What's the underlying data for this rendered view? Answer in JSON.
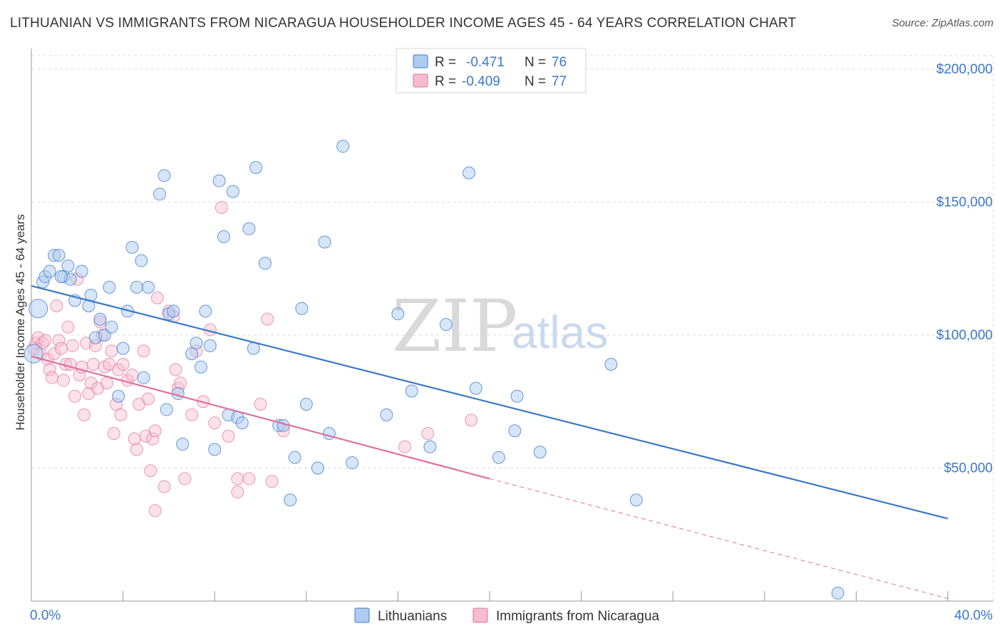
{
  "title": "LITHUANIAN VS IMMIGRANTS FROM NICARAGUA HOUSEHOLDER INCOME AGES 45 - 64 YEARS CORRELATION CHART",
  "source": "Source: ZipAtlas.com",
  "watermark": {
    "zip": "ZIP",
    "atlas": "atlas"
  },
  "colors": {
    "blue": "#3b78c8",
    "blue_fill": "#aecbf0",
    "pink": "#e0709a",
    "pink_fill": "#f6bcd0",
    "grid": "#dcdcdc"
  },
  "legend_top": {
    "rows": [
      {
        "r_label": "R =",
        "r_value": "-0.471",
        "n_label": "N =",
        "n_value": "76"
      },
      {
        "r_label": "R =",
        "r_value": "-0.409",
        "n_label": "N =",
        "n_value": "77"
      }
    ]
  },
  "legend_bottom": {
    "items": [
      "Lithuanians",
      "Immigrants from Nicaragua"
    ]
  },
  "chart_data": {
    "type": "scatter",
    "xlabel": "",
    "ylabel": "Householder Income Ages 45 - 64 years",
    "x_tick_labels": [
      "0.0%",
      "40.0%"
    ],
    "y_tick_labels": [
      "$50,000",
      "$100,000",
      "$150,000",
      "$200,000"
    ],
    "y_ticks": [
      50000,
      100000,
      150000,
      200000
    ],
    "xlim": [
      0,
      40
    ],
    "ylim": [
      0,
      205000
    ],
    "grid": true,
    "series": [
      {
        "name": "Lithuanians",
        "r": -0.471,
        "n": 76,
        "trend": {
          "x0": 0,
          "y0": 118500,
          "x1": 40,
          "y1": 31000
        },
        "points": [
          [
            0.1,
            93000
          ],
          [
            0.3,
            110000
          ],
          [
            0.5,
            120000
          ],
          [
            0.6,
            122000
          ],
          [
            0.8,
            124000
          ],
          [
            1.0,
            130000
          ],
          [
            1.2,
            130000
          ],
          [
            1.4,
            122000
          ],
          [
            1.6,
            126000
          ],
          [
            1.7,
            121000
          ],
          [
            2.2,
            124000
          ],
          [
            1.9,
            113000
          ],
          [
            2.5,
            111000
          ],
          [
            2.6,
            115000
          ],
          [
            2.8,
            99000
          ],
          [
            3.0,
            106000
          ],
          [
            3.2,
            100000
          ],
          [
            3.4,
            118000
          ],
          [
            3.5,
            103000
          ],
          [
            4.0,
            95000
          ],
          [
            4.2,
            109000
          ],
          [
            4.4,
            133000
          ],
          [
            4.6,
            118000
          ],
          [
            4.8,
            128000
          ],
          [
            4.9,
            84000
          ],
          [
            5.1,
            118000
          ],
          [
            5.6,
            153000
          ],
          [
            5.8,
            160000
          ],
          [
            5.9,
            72000
          ],
          [
            6.0,
            108000
          ],
          [
            6.2,
            109000
          ],
          [
            6.4,
            78000
          ],
          [
            6.6,
            59000
          ],
          [
            7.0,
            93000
          ],
          [
            7.2,
            97000
          ],
          [
            7.4,
            88000
          ],
          [
            7.6,
            109000
          ],
          [
            7.8,
            96000
          ],
          [
            8.0,
            57000
          ],
          [
            8.2,
            158000
          ],
          [
            8.4,
            137000
          ],
          [
            8.6,
            70000
          ],
          [
            8.8,
            154000
          ],
          [
            9.0,
            69000
          ],
          [
            9.2,
            67000
          ],
          [
            9.5,
            140000
          ],
          [
            9.7,
            95000
          ],
          [
            9.8,
            163000
          ],
          [
            10.2,
            127000
          ],
          [
            10.8,
            66000
          ],
          [
            11.0,
            66000
          ],
          [
            11.3,
            38000
          ],
          [
            11.5,
            54000
          ],
          [
            11.8,
            110000
          ],
          [
            12.0,
            74000
          ],
          [
            12.5,
            50000
          ],
          [
            12.8,
            135000
          ],
          [
            13.0,
            63000
          ],
          [
            13.6,
            171000
          ],
          [
            14.0,
            52000
          ],
          [
            15.5,
            70000
          ],
          [
            16.0,
            108000
          ],
          [
            16.6,
            79000
          ],
          [
            17.4,
            58000
          ],
          [
            18.1,
            104000
          ],
          [
            19.1,
            161000
          ],
          [
            19.4,
            80000
          ],
          [
            20.4,
            54000
          ],
          [
            21.1,
            64000
          ],
          [
            21.2,
            77000
          ],
          [
            22.2,
            56000
          ],
          [
            25.3,
            89000
          ],
          [
            26.4,
            38000
          ],
          [
            35.2,
            3000
          ],
          [
            3.8,
            77000
          ],
          [
            1.3,
            122000
          ]
        ]
      },
      {
        "name": "Immigrants from Nicaragua",
        "r": -0.409,
        "n": 77,
        "trend": {
          "x0": 0,
          "y0": 92000,
          "x1": 20,
          "y1": 46000,
          "dash_to_x": 40,
          "dash_to_y": 1000
        },
        "points": [
          [
            0.1,
            95000
          ],
          [
            0.2,
            97000
          ],
          [
            0.3,
            99000
          ],
          [
            0.4,
            93000
          ],
          [
            0.5,
            97000
          ],
          [
            0.6,
            98000
          ],
          [
            0.7,
            91000
          ],
          [
            0.8,
            87000
          ],
          [
            0.9,
            84000
          ],
          [
            1.0,
            93000
          ],
          [
            1.1,
            111000
          ],
          [
            1.2,
            98000
          ],
          [
            1.3,
            95000
          ],
          [
            1.4,
            83000
          ],
          [
            1.5,
            89000
          ],
          [
            1.6,
            103000
          ],
          [
            1.7,
            89000
          ],
          [
            1.8,
            96000
          ],
          [
            1.9,
            77000
          ],
          [
            2.0,
            121000
          ],
          [
            2.1,
            85000
          ],
          [
            2.2,
            88000
          ],
          [
            2.3,
            70000
          ],
          [
            2.4,
            97000
          ],
          [
            2.5,
            78000
          ],
          [
            2.6,
            82000
          ],
          [
            2.7,
            89000
          ],
          [
            2.8,
            96000
          ],
          [
            2.9,
            80000
          ],
          [
            3.0,
            105000
          ],
          [
            3.1,
            100000
          ],
          [
            3.2,
            88000
          ],
          [
            3.3,
            82000
          ],
          [
            3.4,
            89000
          ],
          [
            3.5,
            94000
          ],
          [
            3.6,
            63000
          ],
          [
            3.7,
            74000
          ],
          [
            3.8,
            87000
          ],
          [
            3.9,
            70000
          ],
          [
            4.0,
            89000
          ],
          [
            4.2,
            83000
          ],
          [
            4.4,
            85000
          ],
          [
            4.5,
            61000
          ],
          [
            4.6,
            57000
          ],
          [
            4.7,
            74000
          ],
          [
            4.9,
            94000
          ],
          [
            5.0,
            62000
          ],
          [
            5.1,
            76000
          ],
          [
            5.3,
            61000
          ],
          [
            5.4,
            64000
          ],
          [
            5.5,
            114000
          ],
          [
            5.8,
            43000
          ],
          [
            6.0,
            109000
          ],
          [
            6.2,
            107000
          ],
          [
            6.3,
            87000
          ],
          [
            6.4,
            80000
          ],
          [
            6.5,
            82000
          ],
          [
            6.7,
            46000
          ],
          [
            7.0,
            70000
          ],
          [
            7.2,
            94000
          ],
          [
            7.5,
            75000
          ],
          [
            7.8,
            102000
          ],
          [
            8.0,
            67000
          ],
          [
            8.3,
            148000
          ],
          [
            8.6,
            62000
          ],
          [
            9.0,
            46000
          ],
          [
            9.0,
            41000
          ],
          [
            9.5,
            46000
          ],
          [
            10.0,
            74000
          ],
          [
            10.3,
            106000
          ],
          [
            10.5,
            45000
          ],
          [
            11.0,
            64000
          ],
          [
            16.3,
            58000
          ],
          [
            17.3,
            63000
          ],
          [
            19.2,
            68000
          ],
          [
            5.2,
            49000
          ],
          [
            5.4,
            34000
          ]
        ]
      }
    ]
  }
}
